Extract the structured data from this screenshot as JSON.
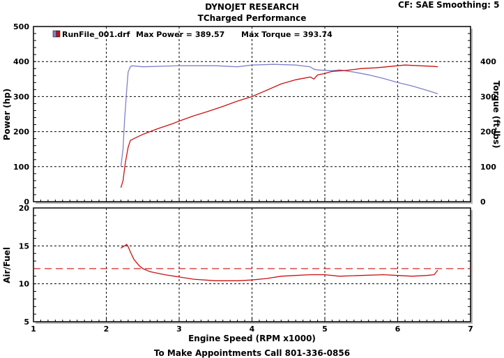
{
  "header": {
    "title": "DYNOJET RESEARCH",
    "subtitle": "TCharged Performance",
    "correction": "CF: SAE",
    "smoothing": "Smoothing: 5"
  },
  "footer": "To Make Appointments Call 801-336-0856",
  "chart_data": [
    {
      "type": "line",
      "legend": {
        "file": "RunFile_001.drf",
        "max_power_text": "Max Power = 389.57",
        "max_torque_text": "Max Torque = 393.74",
        "placement": "top-left"
      },
      "xlabel": "Engine Speed (RPM x1000)",
      "ylabel_left": "Power (hp)",
      "ylabel_right": "Torque (ft-lbs)",
      "xlim": [
        1,
        7
      ],
      "ylim_left": [
        0,
        500
      ],
      "ylim_right": [
        0,
        500
      ],
      "y_ticks_left": [
        0,
        100,
        200,
        300,
        400,
        500
      ],
      "y_ticks_right": [
        0,
        100,
        200,
        300,
        400
      ],
      "grid": true,
      "series": [
        {
          "name": "Power",
          "axis": "left",
          "color": "#cc1111",
          "x": [
            2.2,
            2.23,
            2.26,
            2.3,
            2.33,
            2.4,
            2.5,
            2.7,
            2.9,
            3.0,
            3.2,
            3.4,
            3.6,
            3.8,
            4.0,
            4.2,
            4.4,
            4.6,
            4.8,
            4.85,
            4.9,
            5.0,
            5.1,
            5.3,
            5.5,
            5.7,
            5.9,
            6.0,
            6.1,
            6.2,
            6.3,
            6.5,
            6.55
          ],
          "y": [
            40,
            60,
            110,
            155,
            175,
            182,
            192,
            208,
            222,
            230,
            245,
            258,
            272,
            287,
            300,
            318,
            336,
            348,
            356,
            350,
            362,
            366,
            372,
            375,
            380,
            382,
            386,
            388,
            390,
            389,
            388,
            386,
            385
          ]
        },
        {
          "name": "Torque",
          "axis": "right",
          "color": "#8080cc",
          "x": [
            2.2,
            2.23,
            2.25,
            2.28,
            2.3,
            2.33,
            2.35,
            2.4,
            2.5,
            3.0,
            3.5,
            3.8,
            4.0,
            4.3,
            4.6,
            4.8,
            4.85,
            4.9,
            5.0,
            5.1,
            5.2,
            5.4,
            5.6,
            5.8,
            6.0,
            6.2,
            6.4,
            6.55
          ],
          "y": [
            100,
            150,
            230,
            320,
            370,
            385,
            388,
            387,
            385,
            388,
            388,
            385,
            390,
            392,
            390,
            385,
            378,
            376,
            375,
            374,
            376,
            370,
            362,
            352,
            340,
            330,
            318,
            308
          ]
        }
      ]
    },
    {
      "type": "line",
      "xlabel": "Engine Speed (RPM x1000)",
      "ylabel": "Air/Fuel",
      "xlim": [
        1,
        7
      ],
      "ylim": [
        5,
        20
      ],
      "y_ticks": [
        5,
        10,
        15,
        20
      ],
      "x_ticks": [
        1,
        2,
        3,
        4,
        5,
        6,
        7
      ],
      "grid": true,
      "reference_line": {
        "y": 12,
        "color": "#cc1111",
        "style": "dashed"
      },
      "series": [
        {
          "name": "Air/Fuel",
          "color": "#cc1111",
          "x": [
            2.2,
            2.25,
            2.28,
            2.3,
            2.33,
            2.38,
            2.45,
            2.5,
            2.6,
            2.8,
            3.0,
            3.2,
            3.5,
            3.8,
            4.0,
            4.2,
            4.4,
            4.6,
            4.8,
            5.0,
            5.2,
            5.5,
            5.8,
            6.0,
            6.2,
            6.4,
            6.5,
            6.55
          ],
          "y": [
            14.7,
            15.0,
            15.2,
            14.9,
            14.2,
            13.2,
            12.4,
            12.0,
            11.6,
            11.2,
            10.9,
            10.6,
            10.4,
            10.4,
            10.5,
            10.7,
            11.0,
            11.1,
            11.2,
            11.2,
            11.0,
            11.1,
            11.2,
            11.1,
            11.0,
            11.1,
            11.2,
            11.8
          ]
        }
      ]
    }
  ]
}
